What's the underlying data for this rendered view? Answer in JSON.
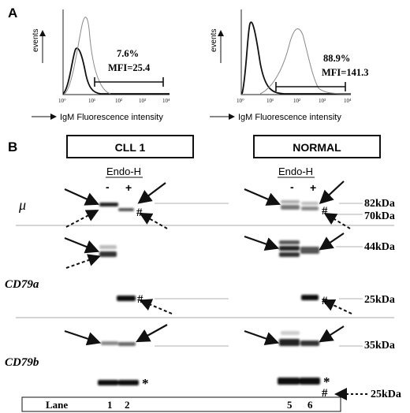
{
  "panel_a": {
    "label": "A",
    "y_axis_label": "events",
    "x_axis_label": "IgM Fluorescence intensity",
    "tick_labels": [
      "10°",
      "10¹",
      "10²",
      "10³",
      "10⁴"
    ],
    "left": {
      "percent": "7.6%",
      "mfi": "MFI=25.4"
    },
    "right": {
      "percent": "88.9%",
      "mfi": "MFI=141.3"
    }
  },
  "panel_b": {
    "label": "B",
    "left_title": "CLL 1",
    "right_title": "NORMAL",
    "treatment_label": "Endo-H",
    "minus": "-",
    "plus": "+",
    "rows": [
      "μ",
      "CD79a",
      "CD79b"
    ],
    "sizes": [
      "82kDa",
      "70kDa",
      "44kDa",
      "25kDa",
      "35kDa",
      "25kDa"
    ],
    "hash": "#",
    "star": "*",
    "lane_label": "Lane",
    "lanes": [
      "1",
      "2",
      "5",
      "6"
    ]
  }
}
